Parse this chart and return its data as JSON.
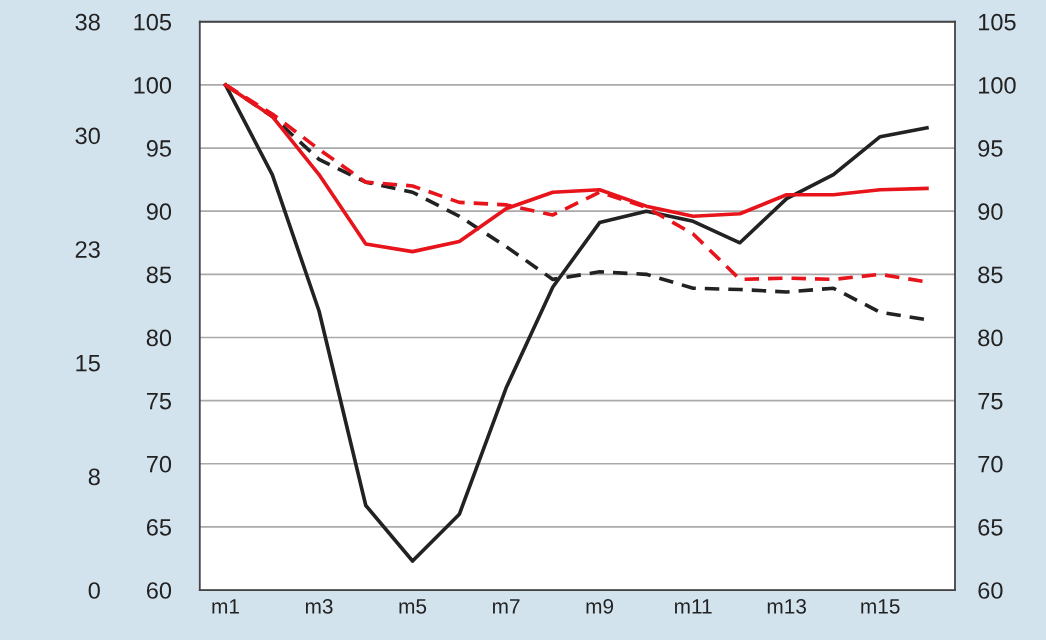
{
  "chart_data": {
    "type": "line",
    "categories": [
      "m1",
      null,
      "m3",
      null,
      "m5",
      null,
      "m7",
      null,
      "m9",
      null,
      "m11",
      null,
      "m13",
      null,
      "m15",
      null
    ],
    "series": [
      {
        "color": "#222222",
        "line_style": "solid",
        "values": [
          100,
          92.9,
          82.1,
          66.7,
          62.3,
          66,
          76,
          84,
          89.1,
          90,
          89.2,
          87.5,
          91,
          92.9,
          95.9,
          96.6
        ]
      },
      {
        "color": "#222222",
        "line_style": "dashed",
        "values": [
          100,
          97.5,
          94.1,
          92.3,
          91.5,
          89.6,
          87.2,
          84.6,
          85.2,
          85,
          83.9,
          83.8,
          83.6,
          83.9,
          82,
          81.4
        ]
      },
      {
        "color": "#e8141b",
        "line_style": "dashed",
        "values": [
          100,
          97.7,
          94.9,
          92.3,
          92,
          90.7,
          90.5,
          89.7,
          91.5,
          90.3,
          88.2,
          84.6,
          84.7,
          84.6,
          85,
          84.4
        ]
      },
      {
        "color": "#e8141b",
        "line_style": "solid",
        "values": [
          100,
          97.5,
          92.9,
          87.4,
          86.8,
          87.6,
          90.2,
          91.5,
          91.7,
          90.4,
          89.6,
          89.8,
          91.3,
          91.3,
          91.7,
          91.8
        ]
      }
    ],
    "ylim": [
      60,
      105
    ],
    "yticks": [
      60,
      65,
      70,
      75,
      80,
      85,
      90,
      95,
      100,
      105
    ],
    "y2lim": [
      60,
      105
    ],
    "y2ticks": [
      60,
      65,
      70,
      75,
      80,
      85,
      90,
      95,
      100,
      105
    ],
    "y3lim": [
      0,
      38
    ],
    "y3ticks": [
      0,
      {
        "value": 7.6,
        "label": "8"
      },
      {
        "value": 15.2,
        "label": "15"
      },
      {
        "value": 22.8,
        "label": "23"
      },
      {
        "value": 30.4,
        "label": "30"
      },
      38
    ],
    "grid": "y",
    "marker": "none"
  }
}
